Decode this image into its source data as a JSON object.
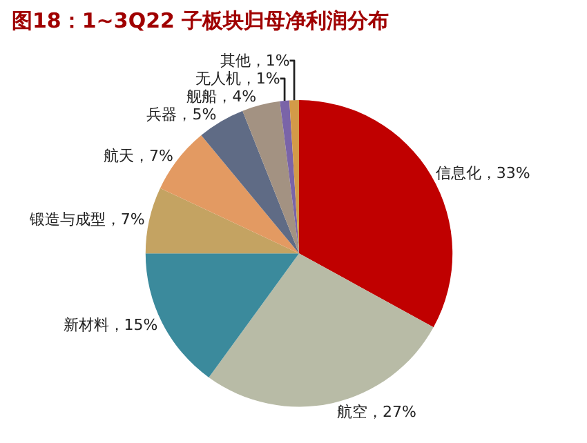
{
  "chart_data": {
    "type": "pie",
    "title": "图18：1~3Q22 子板块归母净利润分布",
    "categories": [
      "信息化",
      "航空",
      "新材料",
      "锻造与成型",
      "航天",
      "兵器",
      "舰船",
      "无人机",
      "其他"
    ],
    "values": [
      33,
      27,
      15,
      7,
      7,
      5,
      4,
      1,
      1
    ],
    "value_labels": [
      "33%",
      "27%",
      "15%",
      "7%",
      "7%",
      "5%",
      "4%",
      "1%",
      "1%"
    ],
    "colors": [
      "#c00000",
      "#b8bba6",
      "#3b8a9c",
      "#c4a362",
      "#e39a62",
      "#5f6b85",
      "#a39282",
      "#7a64a8",
      "#d39a48"
    ],
    "legend": false
  }
}
